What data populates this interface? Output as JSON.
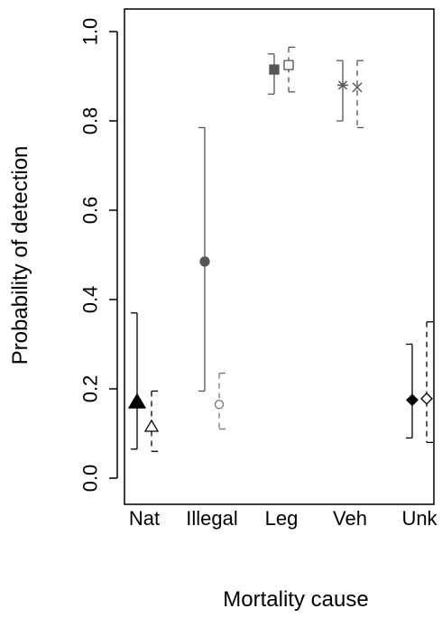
{
  "chart_data": {
    "type": "scatter",
    "title": "",
    "xlabel": "Mortality cause",
    "ylabel": "Probability of detection",
    "ylim": [
      0,
      1
    ],
    "yticks": [
      "0.0",
      "0.2",
      "0.4",
      "0.6",
      "0.8",
      "1.0"
    ],
    "categories": [
      "Nat",
      "Illegal",
      "Leg",
      "Veh",
      "Unk"
    ],
    "grid": false,
    "legend": "none",
    "series": [
      {
        "line_style": "solid",
        "fill": "filled",
        "points": [
          {
            "category": "Nat",
            "y": 0.17,
            "lower": 0.065,
            "upper": 0.37,
            "marker": "triangle",
            "color": "#000000"
          },
          {
            "category": "Illegal",
            "y": 0.485,
            "lower": 0.195,
            "upper": 0.785,
            "marker": "circle",
            "color": "#555555"
          },
          {
            "category": "Leg",
            "y": 0.915,
            "lower": 0.86,
            "upper": 0.95,
            "marker": "square",
            "color": "#555555"
          },
          {
            "category": "Veh",
            "y": 0.88,
            "lower": 0.8,
            "upper": 0.935,
            "marker": "asterisk",
            "color": "#555555"
          },
          {
            "category": "Unk",
            "y": 0.175,
            "lower": 0.09,
            "upper": 0.3,
            "marker": "diamond",
            "color": "#000000"
          }
        ]
      },
      {
        "line_style": "dashed",
        "fill": "open",
        "points": [
          {
            "category": "Nat",
            "y": 0.115,
            "lower": 0.06,
            "upper": 0.195,
            "marker": "triangle",
            "color": "#000000"
          },
          {
            "category": "Illegal",
            "y": 0.165,
            "lower": 0.11,
            "upper": 0.235,
            "marker": "circle",
            "color": "#777777"
          },
          {
            "category": "Leg",
            "y": 0.925,
            "lower": 0.865,
            "upper": 0.965,
            "marker": "square",
            "color": "#555555"
          },
          {
            "category": "Veh",
            "y": 0.875,
            "lower": 0.785,
            "upper": 0.935,
            "marker": "cross",
            "color": "#555555"
          },
          {
            "category": "Unk",
            "y": 0.178,
            "lower": 0.08,
            "upper": 0.35,
            "marker": "diamond",
            "color": "#000000"
          }
        ]
      }
    ]
  }
}
